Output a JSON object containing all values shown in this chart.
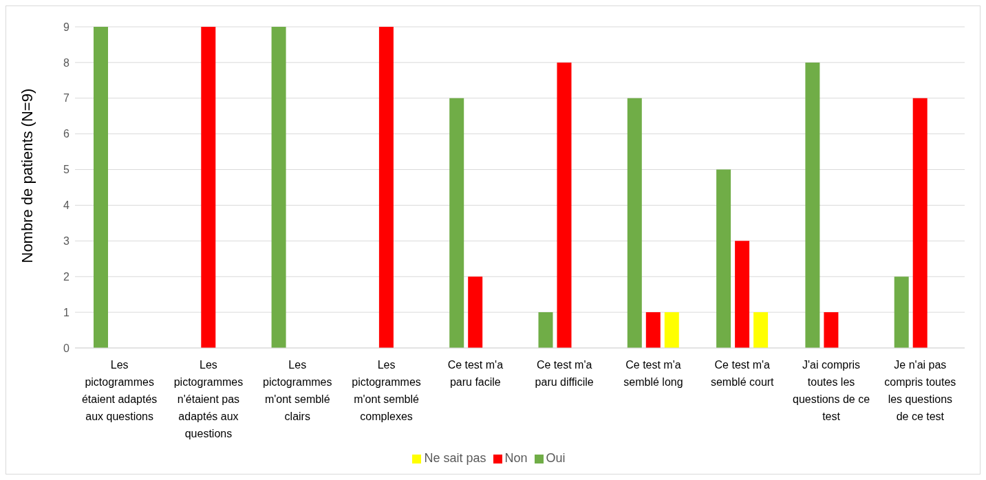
{
  "chart_data": {
    "type": "bar",
    "ylabel": "Nombre de patients (N=9)",
    "categories": [
      "Les pictogrammes étaient adaptés aux questions",
      "Les pictogrammes n'étaient pas adaptés aux questions",
      "Les pictogrammes m'ont semblé clairs",
      "Les pictogrammes m'ont semblé complexes",
      "Ce test m'a paru facile",
      "Ce test m'a paru difficile",
      "Ce test m'a semblé long",
      "Ce test m'a semblé court",
      "J'ai compris toutes les questions de ce test",
      "Je n'ai pas compris toutes les questions de ce test"
    ],
    "series": [
      {
        "name": "Oui",
        "color": "#70ad47",
        "values": [
          9,
          0,
          9,
          0,
          7,
          1,
          7,
          5,
          8,
          2
        ]
      },
      {
        "name": "Non",
        "color": "#ff0000",
        "values": [
          0,
          9,
          0,
          9,
          2,
          8,
          1,
          3,
          1,
          7
        ]
      },
      {
        "name": "Ne sait pas",
        "color": "#ffff00",
        "values": [
          0,
          0,
          0,
          0,
          0,
          0,
          1,
          1,
          0,
          0
        ]
      }
    ],
    "ylim": [
      0,
      9
    ],
    "yticks": [
      0,
      1,
      2,
      3,
      4,
      5,
      6,
      7,
      8,
      9
    ],
    "grid": "y",
    "legend": "bottom"
  }
}
